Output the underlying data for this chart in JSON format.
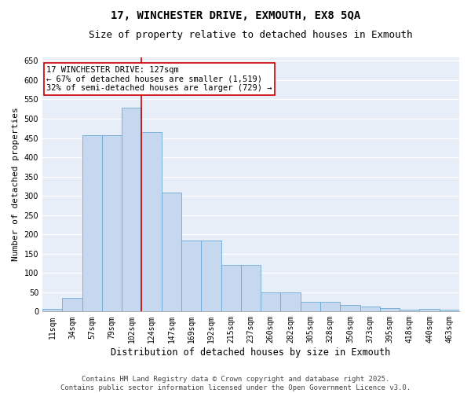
{
  "title": "17, WINCHESTER DRIVE, EXMOUTH, EX8 5QA",
  "subtitle": "Size of property relative to detached houses in Exmouth",
  "xlabel": "Distribution of detached houses by size in Exmouth",
  "ylabel": "Number of detached properties",
  "footer_line1": "Contains HM Land Registry data © Crown copyright and database right 2025.",
  "footer_line2": "Contains public sector information licensed under the Open Government Licence v3.0.",
  "categories": [
    "11sqm",
    "34sqm",
    "57sqm",
    "79sqm",
    "102sqm",
    "124sqm",
    "147sqm",
    "169sqm",
    "192sqm",
    "215sqm",
    "237sqm",
    "260sqm",
    "282sqm",
    "305sqm",
    "328sqm",
    "350sqm",
    "373sqm",
    "395sqm",
    "418sqm",
    "440sqm",
    "463sqm"
  ],
  "values": [
    7,
    35,
    457,
    457,
    528,
    465,
    308,
    184,
    184,
    120,
    120,
    50,
    50,
    25,
    25,
    18,
    13,
    8,
    5,
    7,
    5
  ],
  "bar_color": "#c5d8f0",
  "bar_edge_color": "#6aaad4",
  "vline_color": "#cc0000",
  "vline_x_index": 5,
  "annotation_text": "17 WINCHESTER DRIVE: 127sqm\n← 67% of detached houses are smaller (1,519)\n32% of semi-detached houses are larger (729) →",
  "annotation_box_facecolor": "#ffffff",
  "annotation_box_edgecolor": "#cc0000",
  "ylim": [
    0,
    660
  ],
  "yticks": [
    0,
    50,
    100,
    150,
    200,
    250,
    300,
    350,
    400,
    450,
    500,
    550,
    600,
    650
  ],
  "bg_color": "#ffffff",
  "plot_bg_color": "#e8eef8",
  "grid_color": "#ffffff",
  "title_fontsize": 10,
  "subtitle_fontsize": 9,
  "xlabel_fontsize": 8.5,
  "ylabel_fontsize": 8,
  "tick_fontsize": 7,
  "annotation_fontsize": 7.5,
  "footer_fontsize": 6.5
}
